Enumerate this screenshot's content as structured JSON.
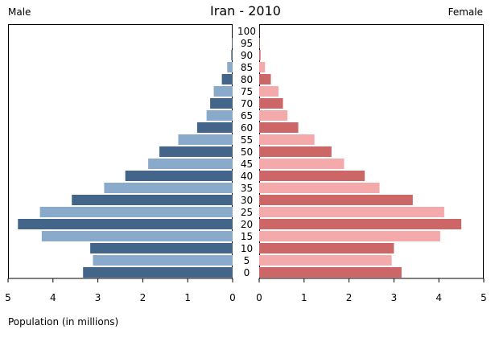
{
  "chart_data": {
    "type": "bar",
    "title": "Iran - 2010",
    "left_label": "Male",
    "right_label": "Female",
    "xlabel": "Population (in millions)",
    "xlim": [
      0,
      5
    ],
    "x_ticks": [
      "5",
      "4",
      "3",
      "2",
      "1",
      "0",
      "0",
      "1",
      "2",
      "3",
      "4",
      "5"
    ],
    "categories": [
      "100",
      "95",
      "90",
      "85",
      "80",
      "75",
      "70",
      "65",
      "60",
      "55",
      "50",
      "45",
      "40",
      "35",
      "30",
      "25",
      "20",
      "15",
      "10",
      "5",
      "0"
    ],
    "series": [
      {
        "name": "Male",
        "color_dark": "#44658a",
        "color_light": "#8aaacc",
        "values": [
          0.003,
          0.01,
          0.03,
          0.12,
          0.24,
          0.42,
          0.5,
          0.58,
          0.79,
          1.21,
          1.63,
          1.88,
          2.39,
          2.86,
          3.58,
          4.29,
          4.78,
          4.25,
          3.17,
          3.11,
          3.33
        ]
      },
      {
        "name": "Female",
        "color_dark": "#cd6767",
        "color_light": "#f4aaaa",
        "values": [
          0.004,
          0.01,
          0.03,
          0.13,
          0.26,
          0.43,
          0.53,
          0.63,
          0.87,
          1.23,
          1.61,
          1.89,
          2.35,
          2.68,
          3.42,
          4.12,
          4.5,
          4.03,
          3.0,
          2.95,
          3.17
        ]
      }
    ]
  }
}
